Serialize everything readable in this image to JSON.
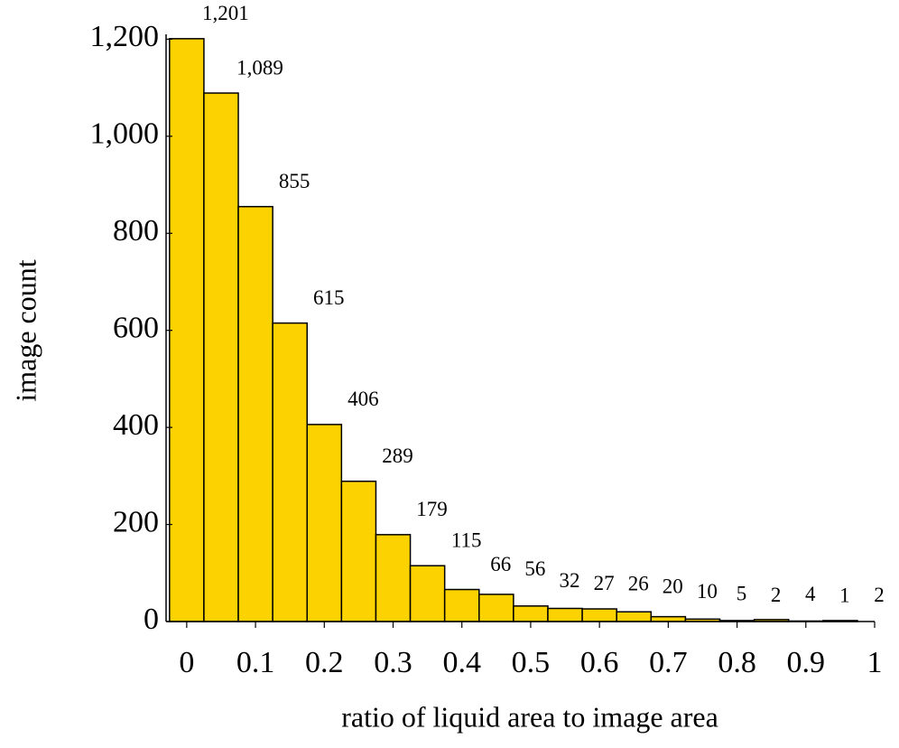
{
  "chart_data": {
    "type": "histogram",
    "x_label": "ratio of liquid area to image area",
    "y_label": "image count",
    "bins": [
      -0.025,
      0.025,
      0.075,
      0.125,
      0.175,
      0.225,
      0.275,
      0.325,
      0.375,
      0.425,
      0.475,
      0.525,
      0.575,
      0.625,
      0.675,
      0.725,
      0.775,
      0.825,
      0.875,
      0.925,
      0.975
    ],
    "values": [
      1201,
      1089,
      855,
      615,
      406,
      289,
      179,
      115,
      66,
      56,
      32,
      27,
      26,
      20,
      10,
      5,
      2,
      4,
      1,
      2
    ],
    "value_labels": [
      "1,201",
      "1,089",
      "855",
      "615",
      "406",
      "289",
      "179",
      "115",
      "66",
      "56",
      "32",
      "27",
      "26",
      "20",
      "10",
      "5",
      "2",
      "4",
      "1",
      "2"
    ],
    "color": "#fcd200",
    "xlim": [
      -0.03,
      1
    ],
    "ylim": [
      0,
      1210
    ],
    "xticks": [
      0,
      0.1,
      0.2,
      0.3,
      0.4,
      0.5,
      0.6,
      0.7,
      0.8,
      0.9,
      1
    ],
    "yticks": [
      0,
      200,
      400,
      600,
      800,
      {
        "value": 1000,
        "label": "1,000"
      },
      {
        "value": 1200,
        "label": "1,200"
      }
    ]
  }
}
